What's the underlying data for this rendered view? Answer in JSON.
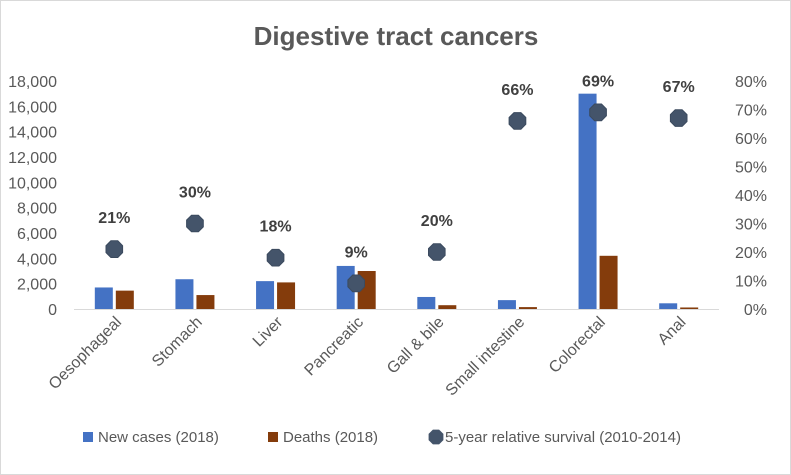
{
  "chart_data": {
    "type": "bar",
    "title": "Digestive tract cancers",
    "categories": [
      "Oesophageal",
      "Stomach",
      "Liver",
      "Pancreatic",
      "Gall & bile",
      "Small intestine",
      "Colorectal",
      "Anal"
    ],
    "series": [
      {
        "name": "New cases (2018)",
        "type": "bar",
        "axis": "left",
        "color": "#4472c4",
        "values": [
          1700,
          2350,
          2200,
          3400,
          950,
          700,
          17000,
          450
        ]
      },
      {
        "name": "Deaths (2018)",
        "type": "bar",
        "axis": "left",
        "color": "#843c0c",
        "values": [
          1450,
          1100,
          2100,
          3000,
          300,
          150,
          4200,
          120
        ]
      },
      {
        "name": "5-year relative survival (2010-2014)",
        "type": "scatter",
        "axis": "right",
        "color": "#44546a",
        "values": [
          0.21,
          0.3,
          0.18,
          0.09,
          0.2,
          0.66,
          0.69,
          0.67
        ],
        "labels": [
          "21%",
          "30%",
          "18%",
          "9%",
          "20%",
          "66%",
          "69%",
          "67%"
        ]
      }
    ],
    "y_left": {
      "min": 0,
      "max": 18000,
      "ticks": [
        "0",
        "2,000",
        "4,000",
        "6,000",
        "8,000",
        "10,000",
        "12,000",
        "14,000",
        "16,000",
        "18,000"
      ]
    },
    "y_right": {
      "min": 0,
      "max": 0.8,
      "ticks": [
        "0%",
        "10%",
        "20%",
        "30%",
        "40%",
        "50%",
        "60%",
        "70%",
        "80%"
      ]
    },
    "grid": false,
    "legend_position": "bottom"
  }
}
